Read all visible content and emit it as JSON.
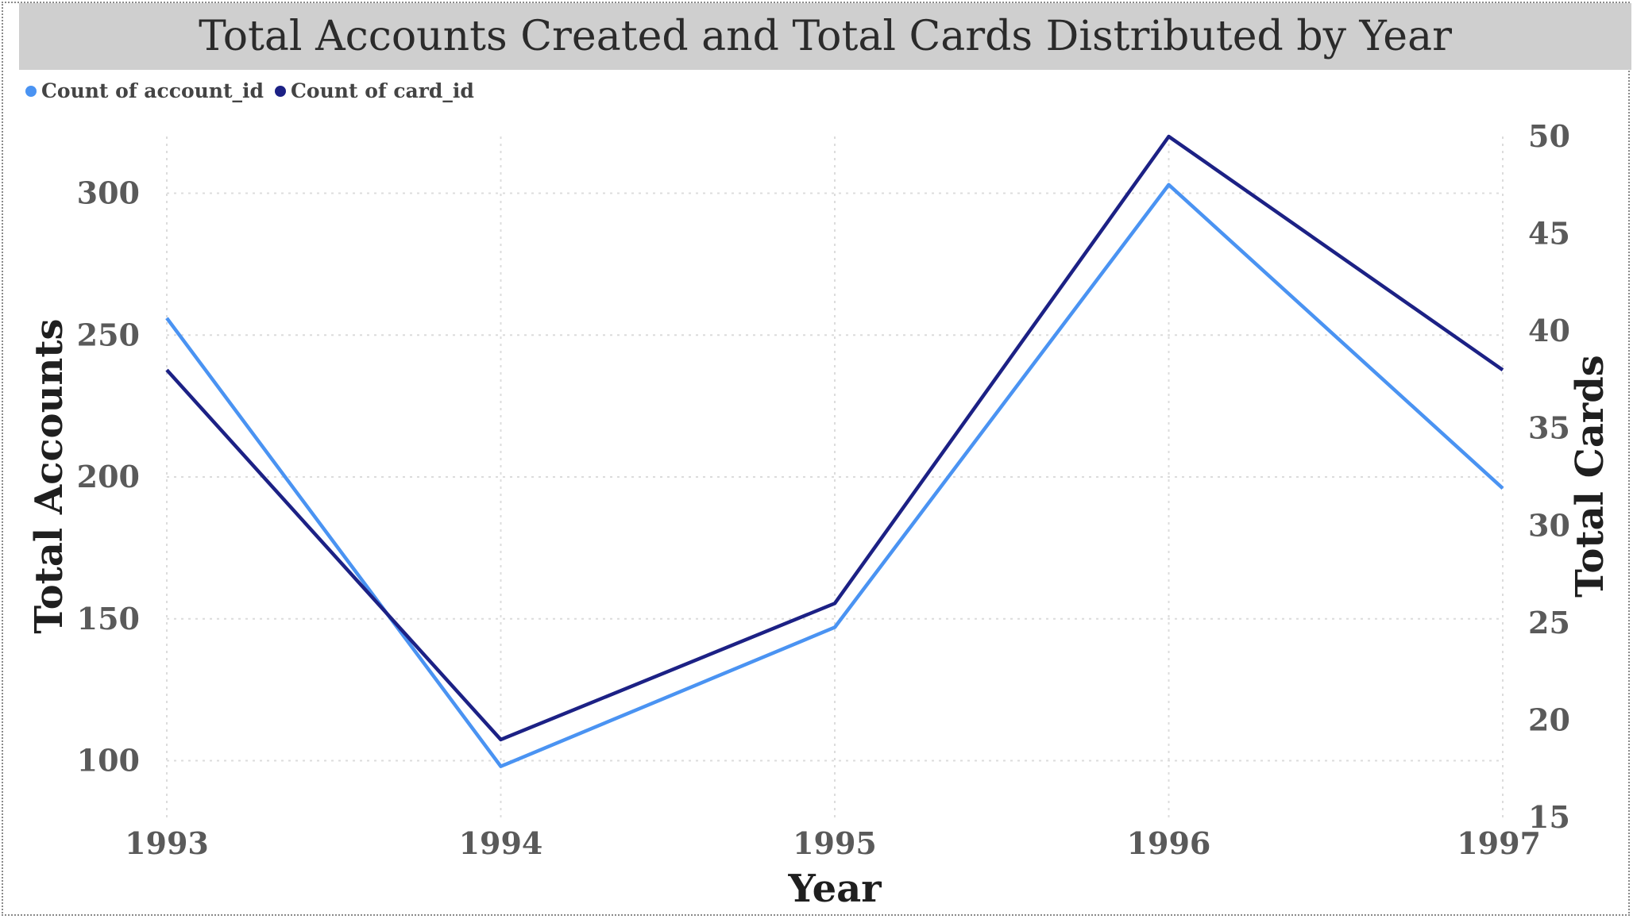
{
  "chart_data": {
    "type": "line",
    "title": "Total Accounts Created and Total Cards Distributed by Year",
    "x": [
      1993,
      1994,
      1995,
      1996,
      1997
    ],
    "xlabel": "Year",
    "ylabel_left": "Total Accounts",
    "ylabel_right": "Total Cards",
    "ylim_left": [
      80,
      320
    ],
    "ylim_right": [
      15,
      50
    ],
    "yticks_left": [
      100,
      150,
      200,
      250,
      300
    ],
    "yticks_right": [
      15,
      20,
      25,
      30,
      35,
      40,
      45,
      50
    ],
    "grid": true,
    "legend_position": "top-left",
    "series": [
      {
        "name": "Count of account_id",
        "axis": "left",
        "color": "#4a93f2",
        "values": [
          256,
          98,
          147,
          303,
          196
        ]
      },
      {
        "name": "Count of card_id",
        "axis": "right",
        "color": "#1c2185",
        "values": [
          38,
          19,
          26,
          50,
          38
        ]
      }
    ]
  }
}
